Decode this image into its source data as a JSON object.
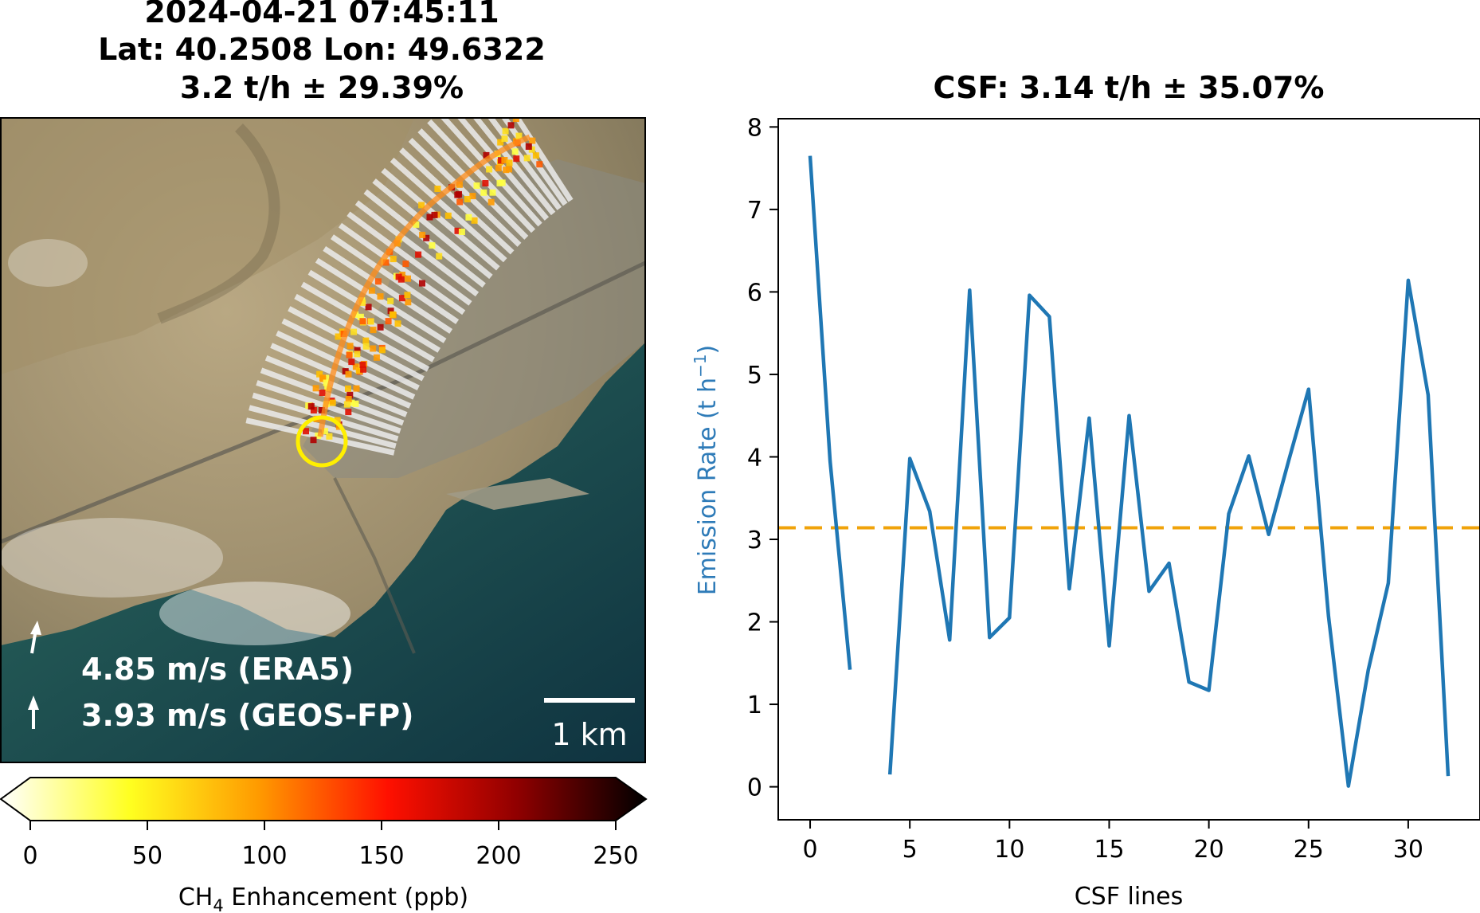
{
  "left_panel": {
    "title_lines": [
      "2024-04-21 07:45:11",
      "Lat: 40.2508 Lon: 49.6322",
      "3.2 t/h ± 29.39%"
    ],
    "wind_labels": [
      "4.85 m/s (ERA5)",
      "3.93 m/s (GEOS-FP)"
    ],
    "scale_bar_label": "1 km",
    "colorbar": {
      "ticks": [
        "0",
        "50",
        "100",
        "150",
        "200",
        "250"
      ],
      "label_prefix": "CH",
      "label_sub": "4",
      "label_suffix": " Enhancement (ppb)",
      "range": [
        0,
        250
      ],
      "colormap": "hot_r",
      "colors": [
        "#ffffff",
        "#ffff20",
        "#ff9a00",
        "#ff1000",
        "#900000",
        "#000000"
      ]
    }
  },
  "chart_data": {
    "type": "line",
    "title": "CSF: 3.14 t/h ± 35.07%",
    "xlabel": "CSF lines",
    "ylabel_main": "Emission Rate (t h",
    "ylabel_sup": "−1",
    "ylabel_close": ")",
    "xlim": [
      -1.6,
      33.6
    ],
    "ylim": [
      -0.4,
      8.1
    ],
    "xticks": [
      0,
      5,
      10,
      15,
      20,
      25,
      30
    ],
    "yticks": [
      0,
      1,
      2,
      3,
      4,
      5,
      6,
      7,
      8
    ],
    "line_color": "#1f77b4",
    "mean_value": 3.14,
    "mean_color": "#f0a30a",
    "series": [
      {
        "x": [
          0,
          1,
          2,
          3,
          4,
          5,
          6,
          7,
          8,
          9,
          10,
          11,
          12,
          13,
          14,
          15,
          16,
          17,
          18,
          19,
          20,
          21,
          22,
          23,
          24,
          25,
          26,
          27,
          28,
          29,
          30,
          31,
          32
        ],
        "values": [
          7.65,
          3.95,
          1.42,
          null,
          0.15,
          3.98,
          3.34,
          1.78,
          6.02,
          1.81,
          2.05,
          5.96,
          5.7,
          2.4,
          4.47,
          1.71,
          4.5,
          2.37,
          2.71,
          1.27,
          1.17,
          3.31,
          4.01,
          3.06,
          3.95,
          4.82,
          2.07,
          0.01,
          1.42,
          2.47,
          6.14,
          4.75,
          0.13
        ]
      }
    ]
  }
}
